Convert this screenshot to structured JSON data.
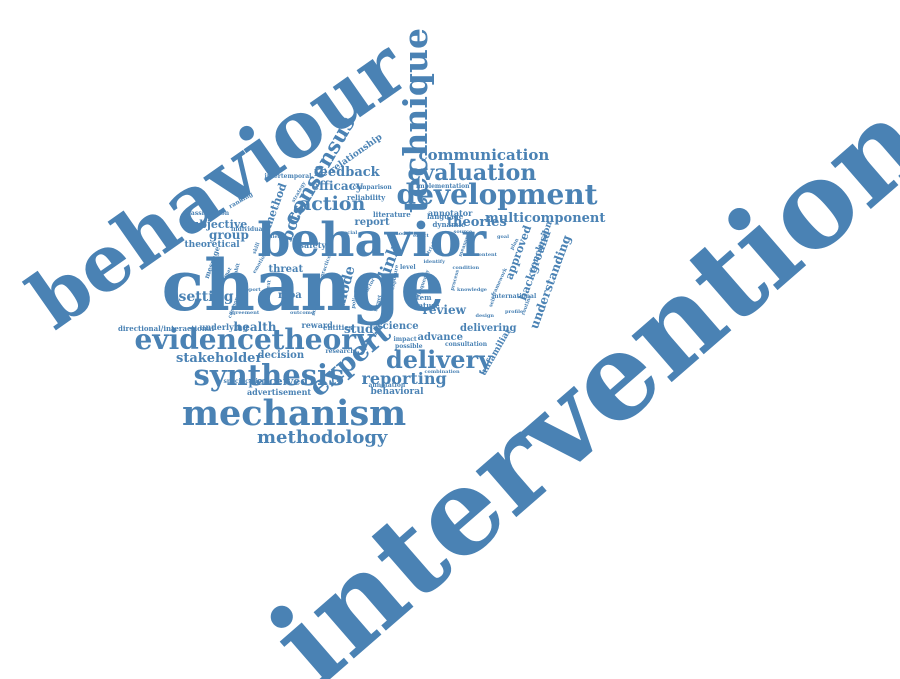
{
  "color": "#4a82b4",
  "words": [
    "intervention",
    "behaviour",
    "change",
    "behavior",
    "technique",
    "mechanism",
    "development",
    "evaluation",
    "communication",
    "consensus",
    "evidence",
    "theory",
    "synthesis",
    "delivery",
    "methodology",
    "expert",
    "reporting",
    "action",
    "feedback",
    "efficacy",
    "multicomponent",
    "theories",
    "report",
    "literature",
    "relationship",
    "link",
    "mode",
    "review",
    "setting",
    "group",
    "subjective",
    "theoretical",
    "health",
    "stakeholder",
    "perceived",
    "advertisement",
    "decision",
    "behavioral",
    "study",
    "science",
    "advance",
    "delivering",
    "unfamiliar",
    "approved",
    "background",
    "understanding",
    "conclusion",
    "annotator",
    "dynamic",
    "language",
    "implementation",
    "comparison",
    "reliability",
    "bcts",
    "method",
    "classification",
    "directional/interactional",
    "underlying",
    "moa",
    "threat",
    "safety",
    "reward",
    "entities",
    "system",
    "feature",
    "international",
    "level",
    "specification",
    "research",
    "impact",
    "annotation",
    "possible",
    "combination",
    "intertemporal",
    "ranking",
    "individual",
    "message",
    "consultation",
    "emotion",
    "context",
    "outcome",
    "target",
    "factor",
    "exposure",
    "frequency",
    "identify",
    "process",
    "knowledge",
    "framework",
    "condition",
    "effect",
    "measure",
    "content",
    "practice",
    "support",
    "format",
    "agreement",
    "component",
    "strategy",
    "social",
    "model",
    "policy",
    "group",
    "design",
    "profile",
    "routine",
    "source",
    "trial",
    "skill",
    "belief",
    "habit",
    "norm",
    "goal",
    "plan",
    "self"
  ]
}
